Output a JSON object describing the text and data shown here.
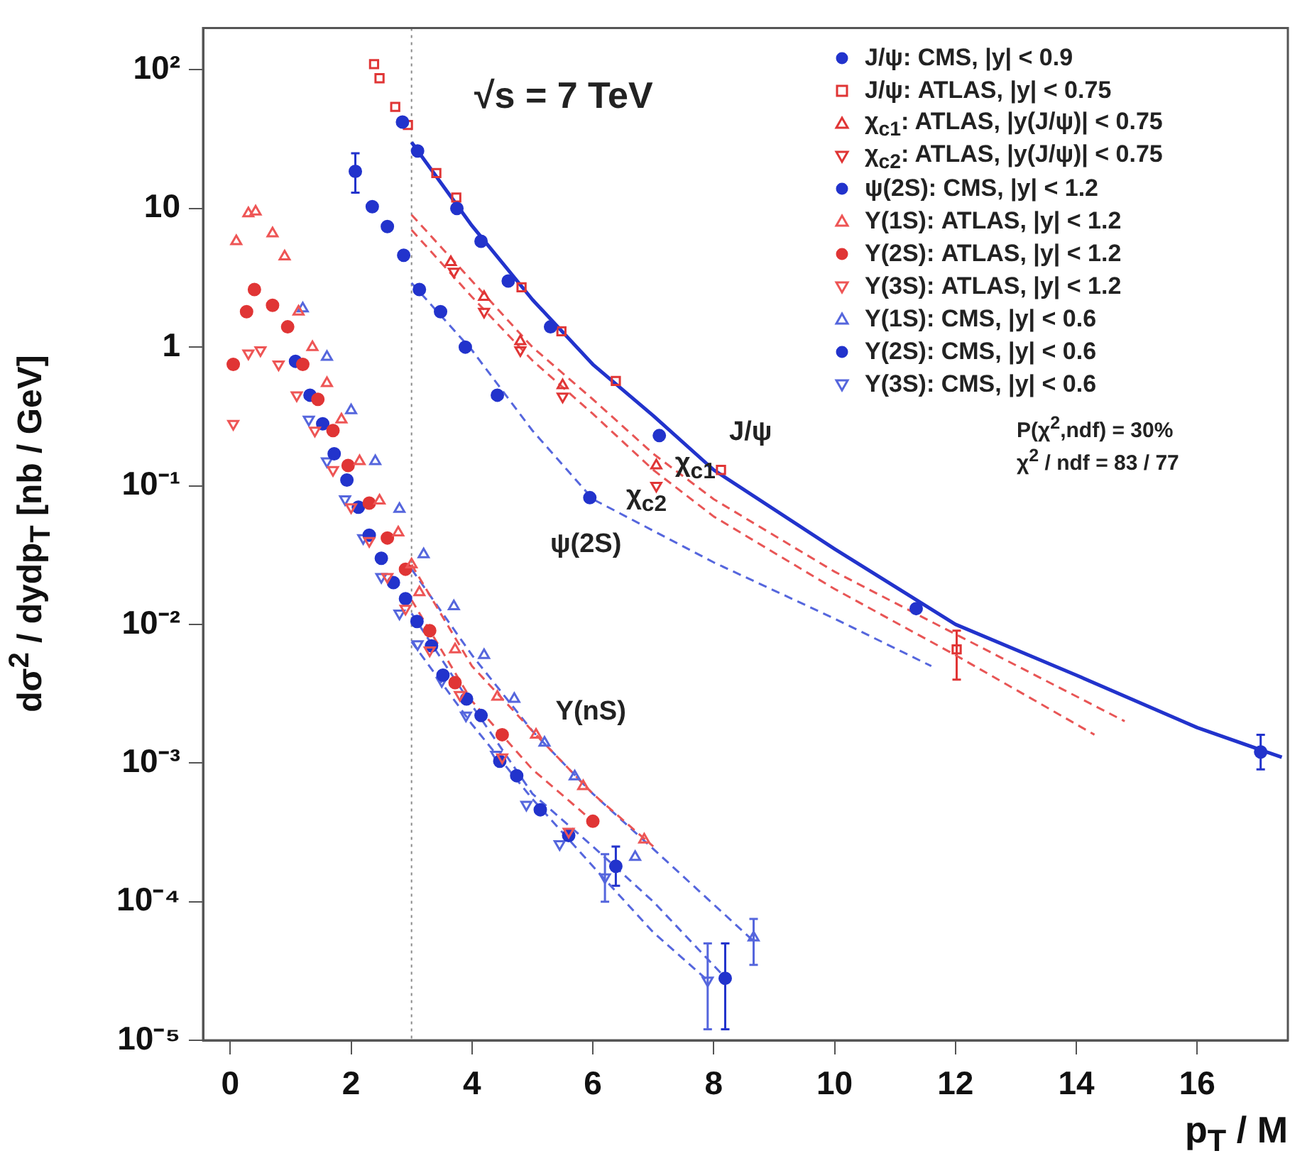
{
  "chart_data": {
    "type": "scatter",
    "xlabel": "p$_{T}$ / M",
    "ylabel": "dσ$^{2}$ / dydp$_{T}$  [nb / GeV]",
    "log": "y",
    "grid": false,
    "legend": "top right",
    "xlim": [
      -0.45,
      17.5
    ],
    "xticks": [
      0,
      2,
      4,
      6,
      8,
      10,
      12,
      14,
      16
    ],
    "ylim": [
      1e-05,
      200
    ],
    "yticks": [
      {
        "value": 1e-05,
        "label": "10⁻⁵"
      },
      {
        "value": 0.0001,
        "label": "10⁻⁴"
      },
      {
        "value": 0.001,
        "label": "10⁻³"
      },
      {
        "value": 0.01,
        "label": "10⁻²"
      },
      {
        "value": 0.1,
        "label": "10⁻¹"
      },
      1,
      10,
      {
        "value": 100,
        "label": "10²"
      }
    ],
    "ref_lines": [
      {
        "axis": "x",
        "value": 3,
        "color": "#8a8a8a",
        "line_style": "dotted"
      }
    ],
    "annotations": [
      "√s = 7 TeV",
      "P(χ$^{2}$,ndf) = 30%",
      "χ$^{2}$ / ndf = 83 / 77",
      "J/ψ",
      "χ$_{c1}$",
      "χ$_{c2}$",
      "ψ(2S)",
      "Υ(nS)"
    ],
    "series": [
      {
        "name": "J/ψ: CMS, |y| < 0.9",
        "type": "scatter",
        "color": "#2233cc",
        "marker": "circle",
        "x": [
          2.85,
          3.1,
          3.75,
          4.15,
          4.6,
          5.3,
          7.1,
          11.35,
          17.05
        ],
        "values": [
          42,
          26,
          10,
          5.8,
          3.0,
          1.4,
          0.23,
          0.013,
          0.0012
        ],
        "errors": [
          null,
          null,
          null,
          null,
          null,
          null,
          null,
          null,
          [
            0.0009,
            0.0016
          ]
        ]
      },
      {
        "name": "J/ψ: ATLAS, |y| < 0.75",
        "type": "scatter",
        "color": "#e03535",
        "marker": "square",
        "x": [
          2.38,
          2.47,
          2.73,
          2.94,
          3.41,
          3.74,
          4.82,
          5.48,
          6.38,
          8.12,
          12.02
        ],
        "values": [
          110,
          87,
          54,
          40,
          18,
          12,
          2.7,
          1.3,
          0.57,
          0.13,
          0.0066
        ],
        "errors": [
          null,
          null,
          null,
          null,
          null,
          null,
          null,
          null,
          null,
          null,
          [
            0.004,
            0.009
          ]
        ]
      },
      {
        "name": "χ$_{c1}$: ATLAS, |y(J/ψ)| < 0.75",
        "type": "scatter",
        "color": "#e03535",
        "marker": "triangle",
        "x": [
          3.65,
          4.2,
          4.8,
          5.5,
          7.05
        ],
        "values": [
          4.1,
          2.3,
          1.1,
          0.53,
          0.14
        ]
      },
      {
        "name": "χ$_{c2}$: ATLAS, |y(J/ψ)| < 0.75",
        "type": "scatter",
        "color": "#e03535",
        "marker": "triangle-down",
        "x": [
          3.7,
          4.2,
          4.8,
          5.5,
          7.05
        ],
        "values": [
          3.5,
          1.8,
          0.95,
          0.44,
          0.1
        ]
      },
      {
        "name": "ψ(2S): CMS, |y| < 1.2",
        "type": "scatter",
        "color": "#2233cc",
        "marker": "circle",
        "x": [
          2.07,
          2.35,
          2.6,
          2.87,
          3.13,
          3.48,
          3.89,
          4.42,
          5.95
        ],
        "values": [
          18.5,
          10.3,
          7.4,
          4.6,
          2.6,
          1.8,
          1.0,
          0.45,
          0.082
        ],
        "errors": [
          [
            13,
            25
          ],
          null,
          null,
          null,
          null,
          null,
          null,
          null,
          null
        ]
      },
      {
        "name": "Υ(1S): ATLAS, |y| < 1.2",
        "type": "scatter",
        "color": "#ee5555",
        "marker": "triangle",
        "x": [
          0.1,
          0.3,
          0.42,
          0.7,
          0.9,
          1.13,
          1.36,
          1.6,
          1.84,
          2.14,
          2.47,
          2.78,
          3.0,
          3.13,
          3.72,
          4.42,
          5.06,
          5.84,
          6.85
        ],
        "values": [
          5.8,
          9.2,
          9.5,
          6.6,
          4.5,
          1.8,
          1.0,
          0.55,
          0.3,
          0.15,
          0.078,
          0.046,
          0.027,
          0.017,
          0.0066,
          0.003,
          0.0016,
          0.00068,
          0.00028
        ]
      },
      {
        "name": "Υ(2S): ATLAS, |y| < 1.2",
        "type": "scatter",
        "color": "#e03535",
        "marker": "circle",
        "x": [
          0.05,
          0.27,
          0.4,
          0.7,
          0.95,
          1.2,
          1.45,
          1.7,
          1.95,
          2.3,
          2.6,
          2.9,
          3.3,
          3.72,
          4.5,
          6.0
        ],
        "values": [
          0.75,
          1.8,
          2.6,
          2.0,
          1.4,
          0.75,
          0.42,
          0.25,
          0.14,
          0.075,
          0.042,
          0.025,
          0.009,
          0.0038,
          0.0016,
          0.00038
        ]
      },
      {
        "name": "Υ(3S): ATLAS, |y| < 1.2",
        "type": "scatter",
        "color": "#ee5555",
        "marker": "triangle-down",
        "x": [
          0.05,
          0.3,
          0.5,
          0.8,
          1.1,
          1.4,
          1.7,
          2.0,
          2.3,
          2.6,
          2.9,
          3.3,
          3.8,
          4.5,
          5.6
        ],
        "values": [
          0.28,
          0.9,
          0.95,
          0.75,
          0.45,
          0.25,
          0.13,
          0.07,
          0.04,
          0.022,
          0.013,
          0.0065,
          0.0031,
          0.0011,
          0.00032
        ]
      },
      {
        "name": "Υ(1S): CMS, |y| < 0.6",
        "type": "scatter",
        "color": "#5566dd",
        "marker": "triangle",
        "x": [
          1.2,
          1.6,
          2.0,
          2.4,
          2.8,
          3.2,
          3.7,
          4.2,
          4.7,
          5.2,
          5.7,
          6.7,
          8.66
        ],
        "values": [
          1.9,
          0.85,
          0.35,
          0.15,
          0.068,
          0.032,
          0.0135,
          0.006,
          0.0029,
          0.0014,
          0.0008,
          0.00021,
          5.5e-05
        ],
        "errors": [
          null,
          null,
          null,
          null,
          null,
          null,
          null,
          null,
          null,
          null,
          null,
          null,
          [
            3.5e-05,
            7.5e-05
          ]
        ]
      },
      {
        "name": "Υ(2S): CMS, |y| < 0.6",
        "type": "scatter",
        "color": "#2233cc",
        "marker": "circle",
        "x": [
          1.08,
          1.32,
          1.53,
          1.72,
          1.93,
          2.12,
          2.3,
          2.5,
          2.7,
          2.9,
          3.09,
          3.33,
          3.52,
          3.91,
          4.15,
          4.46,
          4.74,
          5.13,
          5.6,
          6.38,
          8.19
        ],
        "values": [
          0.79,
          0.45,
          0.28,
          0.17,
          0.11,
          0.07,
          0.044,
          0.03,
          0.02,
          0.0153,
          0.0105,
          0.007,
          0.0043,
          0.0029,
          0.0022,
          0.00103,
          0.00081,
          0.00046,
          0.0003,
          0.00018,
          2.8e-05
        ],
        "errors": [
          null,
          null,
          null,
          null,
          null,
          null,
          null,
          null,
          null,
          null,
          null,
          null,
          null,
          null,
          null,
          null,
          null,
          null,
          null,
          [
            0.00013,
            0.00025
          ],
          [
            1.2e-05,
            5e-05
          ]
        ]
      },
      {
        "name": "Υ(3S): CMS, |y| < 0.6",
        "type": "scatter",
        "color": "#5566dd",
        "marker": "triangle-down",
        "x": [
          1.3,
          1.6,
          1.9,
          2.2,
          2.5,
          2.8,
          3.1,
          3.5,
          3.9,
          4.4,
          4.9,
          5.45,
          6.2,
          7.9
        ],
        "values": [
          0.3,
          0.15,
          0.08,
          0.042,
          0.022,
          0.012,
          0.0072,
          0.0039,
          0.0022,
          0.00115,
          0.0005,
          0.00026,
          0.00015,
          2.7e-05
        ],
        "errors": [
          null,
          null,
          null,
          null,
          null,
          null,
          null,
          null,
          null,
          null,
          null,
          null,
          [
            0.0001,
            0.00022
          ],
          [
            1.2e-05,
            5e-05
          ]
        ]
      },
      {
        "type": "line",
        "color": "#2233cc",
        "line_style": "solid",
        "x": [
          3,
          4,
          5,
          6,
          7,
          8,
          10,
          12,
          14,
          16,
          17.4
        ],
        "values": [
          30,
          7.5,
          2.2,
          0.75,
          0.32,
          0.13,
          0.035,
          0.01,
          0.0043,
          0.0018,
          0.0011
        ]
      },
      {
        "type": "line",
        "color": "#e85555",
        "line_style": "dashed",
        "x": [
          3,
          4,
          5,
          6,
          7,
          8,
          10,
          12,
          14.8
        ],
        "values": [
          9,
          3,
          1.0,
          0.42,
          0.17,
          0.08,
          0.024,
          0.0085,
          0.002
        ]
      },
      {
        "type": "line",
        "color": "#e85555",
        "line_style": "dashed",
        "x": [
          3,
          4,
          5,
          6,
          7,
          8,
          10,
          12,
          14.3
        ],
        "values": [
          7,
          2.3,
          0.8,
          0.33,
          0.13,
          0.06,
          0.018,
          0.006,
          0.0016
        ]
      },
      {
        "type": "line",
        "color": "#5566dd",
        "line_style": "dashed",
        "x": [
          3,
          4,
          5,
          6,
          8,
          10,
          11.6
        ],
        "values": [
          2.9,
          0.95,
          0.25,
          0.08,
          0.028,
          0.011,
          0.005
        ]
      },
      {
        "type": "line",
        "color": "#e85555",
        "line_style": "dashed",
        "x": [
          3,
          4,
          5,
          6,
          7
        ],
        "values": [
          0.027,
          0.005,
          0.0017,
          0.0006,
          0.00025
        ]
      },
      {
        "type": "line",
        "color": "#e85555",
        "line_style": "dashed",
        "x": [
          3,
          4,
          5,
          6
        ],
        "values": [
          0.015,
          0.0028,
          0.0009,
          0.00038
        ]
      },
      {
        "type": "line",
        "color": "#5566dd",
        "line_style": "dashed",
        "x": [
          3,
          4,
          5,
          6,
          7,
          8.7
        ],
        "values": [
          0.025,
          0.006,
          0.0017,
          0.0006,
          0.00024,
          5e-05
        ]
      },
      {
        "type": "line",
        "color": "#5566dd",
        "line_style": "dashed",
        "x": [
          3,
          4,
          5,
          6,
          7,
          8.2
        ],
        "values": [
          0.012,
          0.0026,
          0.0006,
          0.00025,
          0.0001,
          2.8e-05
        ]
      },
      {
        "type": "line",
        "color": "#5566dd",
        "line_style": "dashed",
        "x": [
          3,
          4,
          5,
          6,
          7,
          7.9
        ],
        "values": [
          0.0075,
          0.0019,
          0.00055,
          0.00018,
          6e-05,
          2.7e-05
        ]
      }
    ]
  }
}
